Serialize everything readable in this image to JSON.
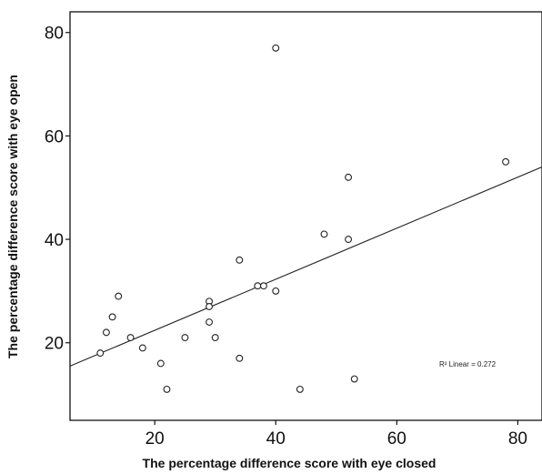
{
  "chart_data": {
    "type": "scatter",
    "title": "",
    "xlabel": "The percentage difference score with eye closed",
    "ylabel": "The percentage difference score with eye open",
    "xlim": [
      6,
      84
    ],
    "ylim": [
      5,
      84
    ],
    "x_ticks": [
      20,
      40,
      60,
      80
    ],
    "y_ticks": [
      20,
      40,
      60,
      80
    ],
    "x_tick_labels": [
      "20",
      "40",
      "60",
      "80"
    ],
    "y_tick_labels": [
      "20",
      "40",
      "60",
      "80"
    ],
    "grid": false,
    "points": [
      {
        "x": 11,
        "y": 18
      },
      {
        "x": 12,
        "y": 22
      },
      {
        "x": 13,
        "y": 25
      },
      {
        "x": 14,
        "y": 29
      },
      {
        "x": 16,
        "y": 21
      },
      {
        "x": 18,
        "y": 19
      },
      {
        "x": 21,
        "y": 16
      },
      {
        "x": 22,
        "y": 11
      },
      {
        "x": 25,
        "y": 21
      },
      {
        "x": 29,
        "y": 28
      },
      {
        "x": 29,
        "y": 27
      },
      {
        "x": 29,
        "y": 24
      },
      {
        "x": 30,
        "y": 21
      },
      {
        "x": 34,
        "y": 36
      },
      {
        "x": 34,
        "y": 17
      },
      {
        "x": 37,
        "y": 31
      },
      {
        "x": 38,
        "y": 31
      },
      {
        "x": 40,
        "y": 30
      },
      {
        "x": 40,
        "y": 77
      },
      {
        "x": 44,
        "y": 11
      },
      {
        "x": 48,
        "y": 41
      },
      {
        "x": 52,
        "y": 52
      },
      {
        "x": 52,
        "y": 40
      },
      {
        "x": 53,
        "y": 13
      },
      {
        "x": 78,
        "y": 55
      }
    ],
    "fit_line": {
      "x": [
        6,
        84
      ],
      "y": [
        15.5,
        54
      ]
    },
    "annotation": "R² Linear = 0.272",
    "color": "#222222"
  }
}
